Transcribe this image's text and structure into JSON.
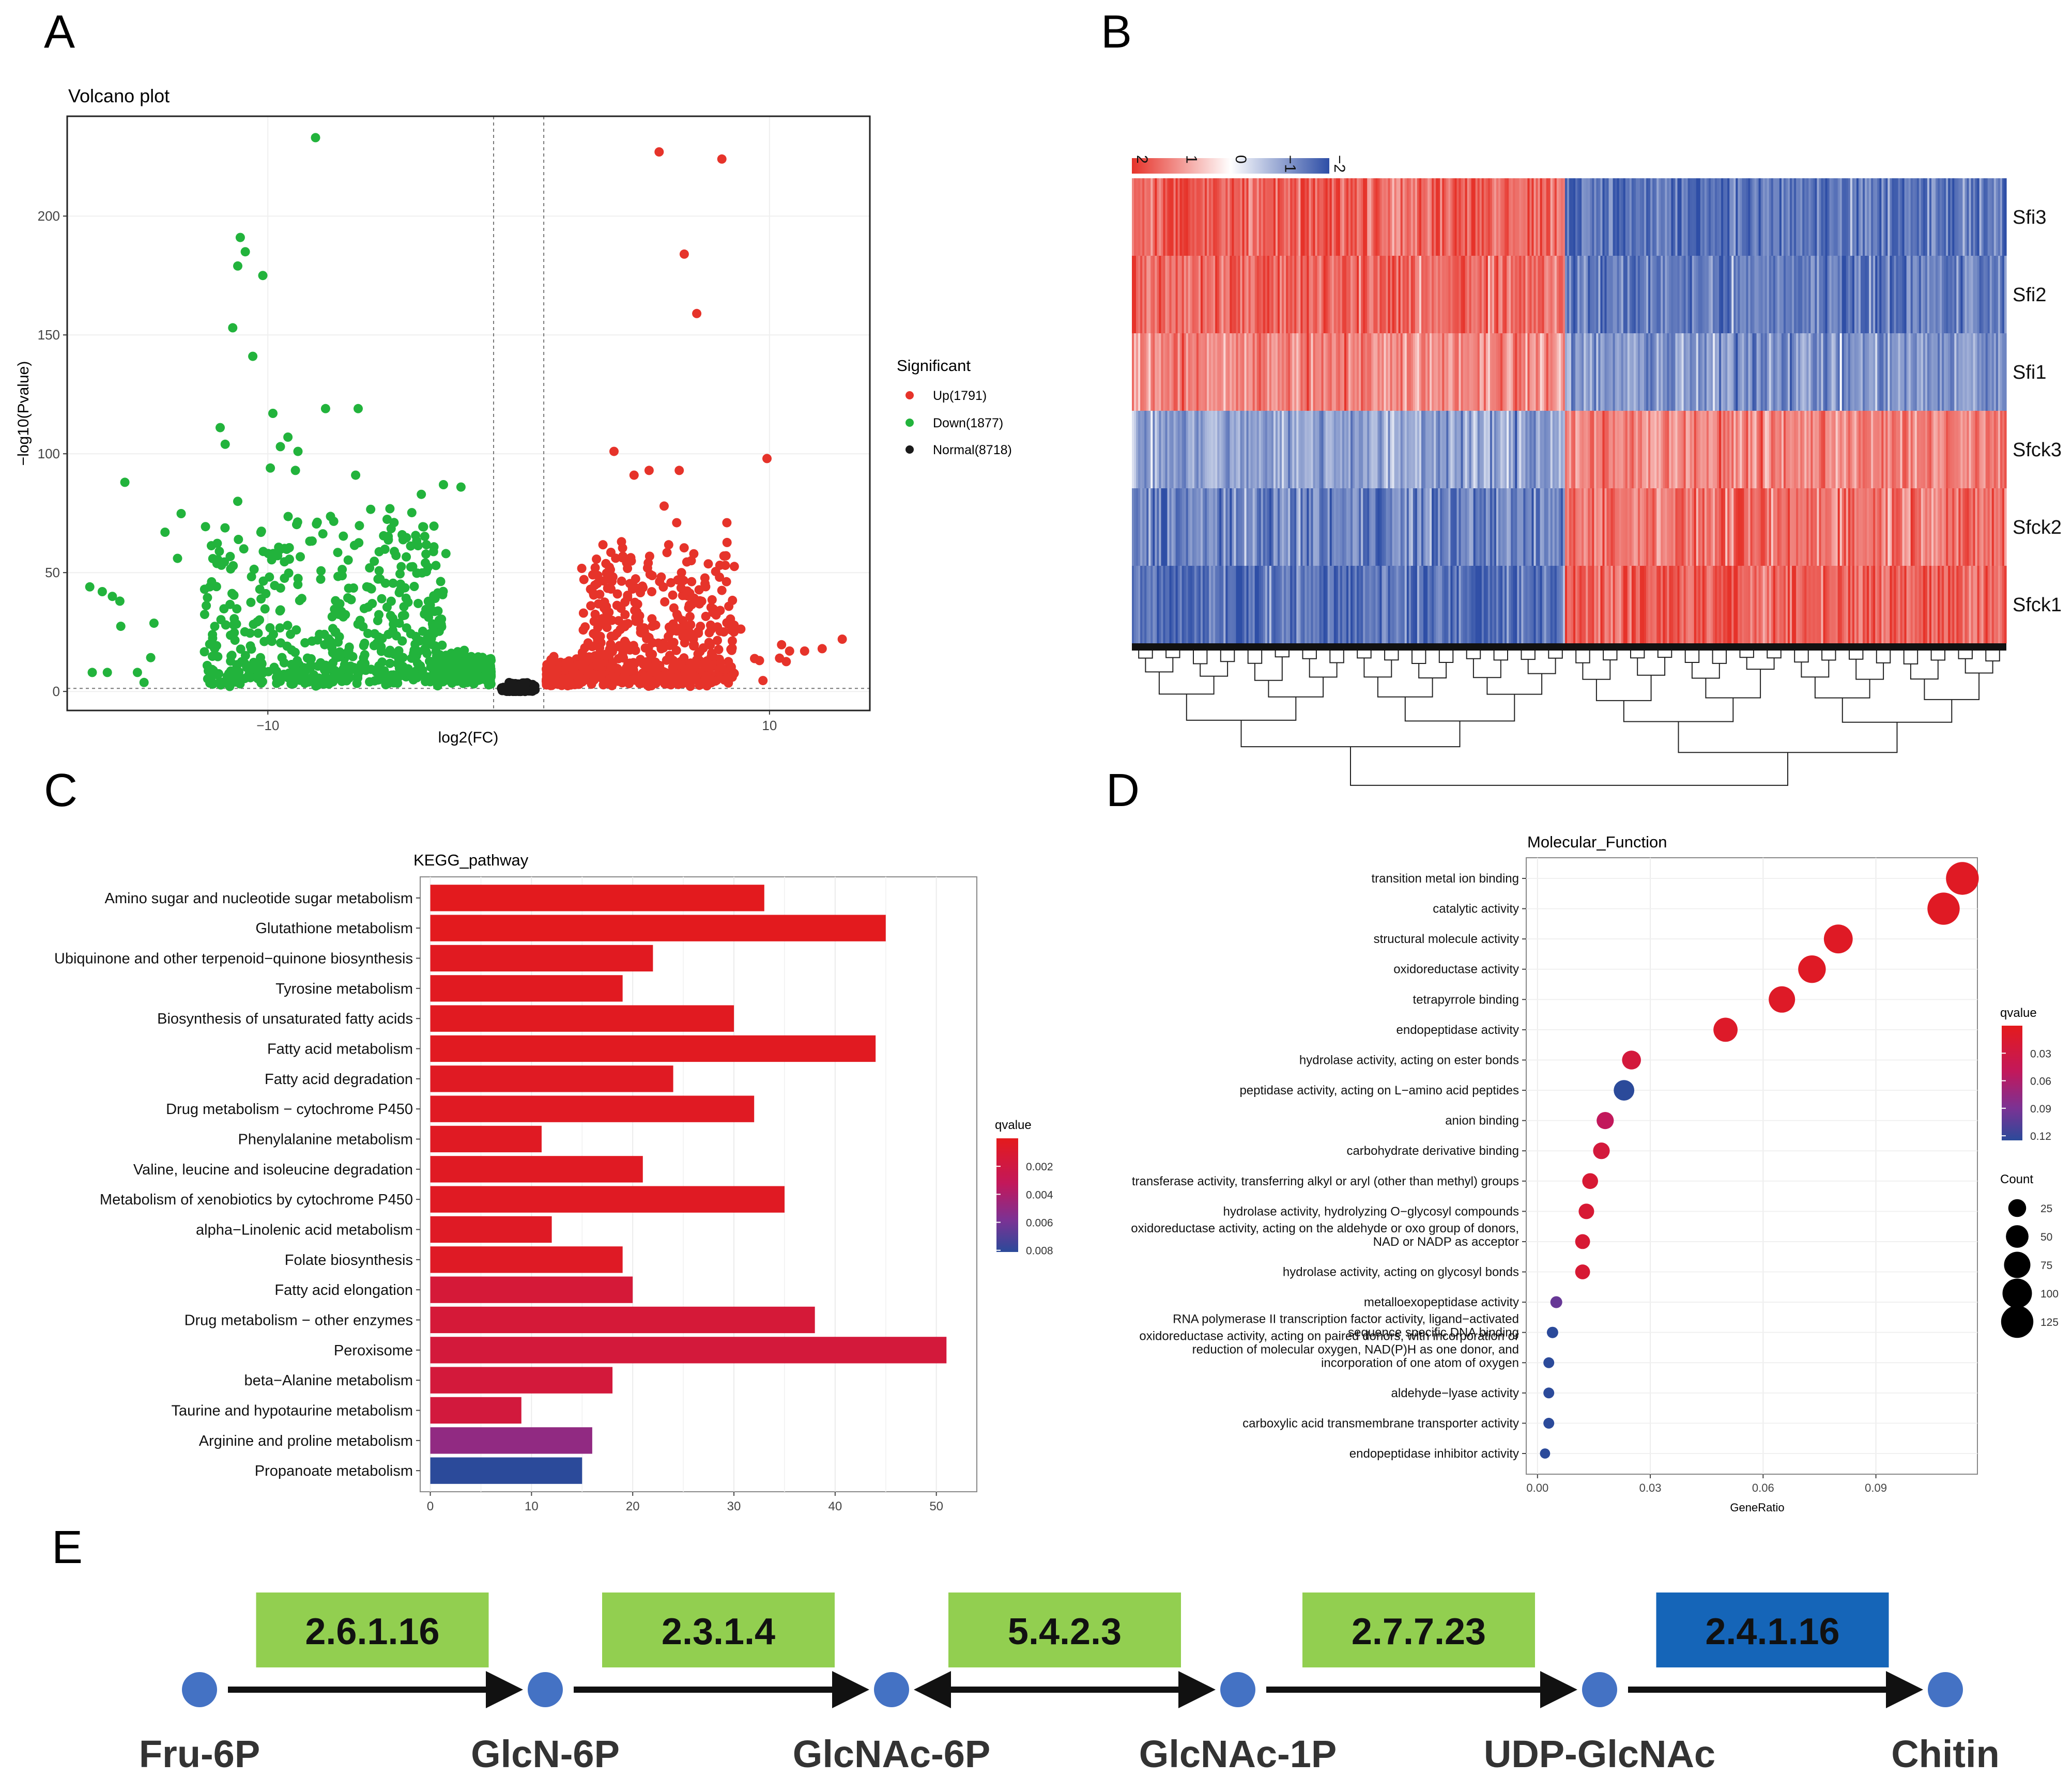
{
  "panel_labels": [
    "A",
    "B",
    "C",
    "D",
    "E"
  ],
  "chart_data": [
    {
      "panel": "A",
      "type": "scatter",
      "title": "Volcano plot",
      "xlabel": "log2(FC)",
      "ylabel": "−log10(Pvalue)",
      "xlim": [
        -18,
        14
      ],
      "ylim": [
        -8,
        242
      ],
      "xticks": [
        -10,
        10
      ],
      "xtick_labels": [
        "−10",
        "10"
      ],
      "yticks": [
        0,
        50,
        100,
        150,
        200
      ],
      "fc_threshold": 1,
      "p_threshold": 1.3,
      "legend": {
        "title": "Significant",
        "entries": [
          "Up(1791)",
          "Down(1877)",
          "Normal(8718)"
        ],
        "colors": [
          "#e6332a",
          "#22b33c",
          "#1a1a1a"
        ]
      },
      "series": [
        {
          "name": "Down(1877)",
          "color": "#22b33c",
          "points": [
            [
              -8.1,
              233
            ],
            [
              -11.1,
              191
            ],
            [
              -10.9,
              185
            ],
            [
              -11.2,
              179
            ],
            [
              -10.2,
              175
            ],
            [
              -11.4,
              153
            ],
            [
              -10.6,
              141
            ],
            [
              -7.7,
              119
            ],
            [
              -6.4,
              119
            ],
            [
              -9.8,
              117
            ],
            [
              -11.9,
              111
            ],
            [
              -9.2,
              107
            ],
            [
              -11.7,
              104
            ],
            [
              -9.5,
              103
            ],
            [
              -8.8,
              101
            ],
            [
              -9.9,
              94
            ],
            [
              -8.9,
              93
            ],
            [
              -6.5,
              91
            ],
            [
              -15.7,
              88
            ],
            [
              -3.0,
              87
            ],
            [
              -2.3,
              86
            ],
            [
              -11.2,
              80
            ],
            [
              -14.1,
              67
            ],
            [
              -13.6,
              56
            ],
            [
              -17.1,
              44
            ],
            [
              -16.6,
              42
            ],
            [
              -16.2,
              40
            ],
            [
              -15.9,
              38
            ],
            [
              -2.9,
              58
            ],
            [
              -3.3,
              53
            ],
            [
              -17.0,
              8
            ],
            [
              -16.4,
              8
            ],
            [
              -15.2,
              8
            ]
          ]
        },
        {
          "name": "Up(1791)",
          "color": "#e6332a",
          "points": [
            [
              5.6,
              227
            ],
            [
              8.1,
              224
            ],
            [
              6.6,
              184
            ],
            [
              7.1,
              159
            ],
            [
              3.8,
              101
            ],
            [
              5.2,
              93
            ],
            [
              4.6,
              91
            ],
            [
              6.4,
              93
            ],
            [
              9.9,
              98
            ],
            [
              5.8,
              78
            ],
            [
              6.3,
              71
            ],
            [
              8.3,
              71
            ],
            [
              4.1,
              63
            ],
            [
              12.9,
              22
            ],
            [
              12.1,
              18
            ],
            [
              11.4,
              17
            ],
            [
              10.8,
              17
            ],
            [
              10.4,
              14
            ],
            [
              9.6,
              13
            ],
            [
              7.7,
              11
            ]
          ]
        },
        {
          "name": "Normal(8718)",
          "color": "#1a1a1a",
          "points": []
        }
      ]
    },
    {
      "panel": "B",
      "type": "heatmap",
      "rows": [
        "Sfi3",
        "Sfi2",
        "Sfi1",
        "Sfck3",
        "Sfck2",
        "Sfck1"
      ],
      "color_scale": {
        "ticks": [
          2,
          1,
          0,
          -1,
          -2
        ],
        "tick_labels": [
          "2",
          "1",
          "0",
          "−1",
          "−2"
        ],
        "colors": [
          "#e6332a",
          "#ffffff",
          "#2e4ea6"
        ]
      },
      "cluster_split_fraction": 0.495,
      "row_pattern": [
        [
          1.6,
          -1.6
        ],
        [
          1.5,
          -1.5
        ],
        [
          1.2,
          -1.2
        ],
        [
          -1.0,
          1.2
        ],
        [
          -1.4,
          1.4
        ],
        [
          -1.6,
          1.6
        ]
      ]
    },
    {
      "panel": "C",
      "type": "bar",
      "orientation": "horizontal",
      "title": "KEGG_pathway",
      "categories": [
        "Amino sugar and nucleotide sugar metabolism",
        "Glutathione metabolism",
        "Ubiquinone and other terpenoid−quinone biosynthesis",
        "Tyrosine metabolism",
        "Biosynthesis of unsaturated fatty acids",
        "Fatty acid metabolism",
        "Fatty acid degradation",
        "Drug metabolism − cytochrome P450",
        "Phenylalanine metabolism",
        "Valine, leucine and isoleucine degradation",
        "Metabolism of xenobiotics by cytochrome P450",
        "alpha−Linolenic acid metabolism",
        "Folate biosynthesis",
        "Fatty acid elongation",
        "Drug metabolism − other enzymes",
        "Peroxisome",
        "beta−Alanine metabolism",
        "Taurine and hypotaurine metabolism",
        "Arginine and proline metabolism",
        "Propanoate metabolism"
      ],
      "values": [
        33,
        45,
        22,
        19,
        30,
        44,
        24,
        32,
        11,
        21,
        35,
        12,
        19,
        20,
        38,
        51,
        18,
        9,
        16,
        15
      ],
      "qvalues": [
        0.0001,
        0.0001,
        0.0002,
        0.0002,
        0.0002,
        0.0002,
        0.0003,
        0.0003,
        0.0003,
        0.0003,
        0.0003,
        0.0004,
        0.0004,
        0.0012,
        0.0012,
        0.0013,
        0.0013,
        0.0014,
        0.0045,
        0.0085
      ],
      "xlim": [
        -1,
        54
      ],
      "xticks": [
        0,
        10,
        20,
        30,
        40,
        50
      ],
      "legend": {
        "title": "qvalue",
        "ticks": [
          0.002,
          0.004,
          0.006,
          0.008
        ],
        "tick_labels": [
          "0.002",
          "0.004",
          "0.006",
          "0.008"
        ],
        "colors": [
          "#e41a1c",
          "#c2185b",
          "#7b3294",
          "#2b4a9a"
        ]
      }
    },
    {
      "panel": "D",
      "type": "scatter",
      "title": "Molecular_Function",
      "xlabel": "GeneRatio",
      "xlim": [
        -0.003,
        0.117
      ],
      "xticks": [
        0.0,
        0.03,
        0.06,
        0.09
      ],
      "xtick_labels": [
        "0.00",
        "0.03",
        "0.06",
        "0.09"
      ],
      "categories": [
        [
          "transition metal ion binding"
        ],
        [
          "catalytic activity"
        ],
        [
          "structural molecule activity"
        ],
        [
          "oxidoreductase activity"
        ],
        [
          "tetrapyrrole binding"
        ],
        [
          "endopeptidase activity"
        ],
        [
          "hydrolase activity, acting on ester bonds"
        ],
        [
          "peptidase activity, acting on L−amino acid peptides"
        ],
        [
          "anion binding"
        ],
        [
          "carbohydrate derivative binding"
        ],
        [
          "transferase activity, transferring alkyl or aryl (other than methyl) groups"
        ],
        [
          "hydrolase activity, hydrolyzing O−glycosyl compounds"
        ],
        [
          "oxidoreductase activity, acting on the aldehyde or oxo group of donors,",
          "NAD or NADP as acceptor"
        ],
        [
          "hydrolase activity, acting on glycosyl bonds"
        ],
        [
          "metalloexopeptidase activity"
        ],
        [
          "RNA polymerase II transcription factor activity, ligand−activated",
          "sequence specific DNA binding"
        ],
        [
          "oxidoreductase activity, acting on paired donors, with incorporation or",
          "reduction of molecular oxygen, NAD(P)H as one donor, and",
          "incorporation of one atom of oxygen"
        ],
        [
          "aldehyde−lyase activity"
        ],
        [
          "carboxylic acid transmembrane transporter activity"
        ],
        [
          "endopeptidase inhibitor activity"
        ]
      ],
      "gene_ratio": [
        0.113,
        0.108,
        0.08,
        0.073,
        0.065,
        0.05,
        0.025,
        0.023,
        0.018,
        0.017,
        0.014,
        0.013,
        0.012,
        0.012,
        0.005,
        0.004,
        0.003,
        0.003,
        0.003,
        0.002
      ],
      "count": [
        130,
        125,
        95,
        85,
        75,
        60,
        30,
        38,
        22,
        20,
        17,
        16,
        14,
        14,
        6,
        5,
        4,
        4,
        4,
        3
      ],
      "qvalues": [
        0.005,
        0.005,
        0.006,
        0.006,
        0.007,
        0.008,
        0.02,
        0.12,
        0.04,
        0.02,
        0.015,
        0.015,
        0.015,
        0.015,
        0.09,
        0.12,
        0.12,
        0.12,
        0.12,
        0.12
      ],
      "legend": {
        "color_title": "qvalue",
        "color_ticks": [
          0.03,
          0.06,
          0.09,
          0.12
        ],
        "color_tick_labels": [
          "0.03",
          "0.06",
          "0.09",
          "0.12"
        ],
        "colors": [
          "#e41a1c",
          "#c2185b",
          "#7b3294",
          "#2b4a9a"
        ],
        "size_title": "Count",
        "size_ticks": [
          25,
          50,
          75,
          100,
          125
        ]
      }
    }
  ],
  "pathway": {
    "nodes": [
      "Fru-6P",
      "GlcN-6P",
      "GlcNAc-6P",
      "GlcNAc-1P",
      "UDP-GlcNAc",
      "Chitin"
    ],
    "enzymes": [
      "2.6.1.16",
      "2.3.1.4",
      "5.4.2.3",
      "2.7.7.23",
      "2.4.1.16"
    ],
    "enzyme_colors": [
      "#92cf50",
      "#92cf50",
      "#92cf50",
      "#92cf50",
      "#1565b8"
    ],
    "reversible": [
      false,
      false,
      true,
      false,
      false
    ],
    "node_color": "#4472c4"
  }
}
